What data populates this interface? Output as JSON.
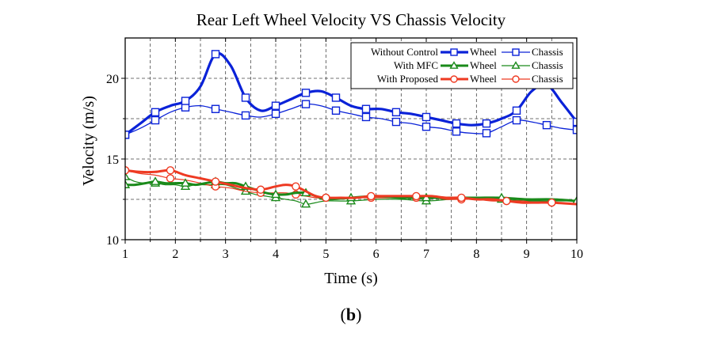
{
  "chart_data": {
    "type": "line",
    "title": "Rear Left Wheel Velocity VS Chassis Velocity",
    "xlabel": "Time (s)",
    "ylabel": "Velocity (m/s)",
    "xlim": [
      1,
      10
    ],
    "ylim": [
      10,
      22.5
    ],
    "xticks": [
      1,
      2,
      3,
      4,
      5,
      6,
      7,
      8,
      9,
      10
    ],
    "yticks": [
      10,
      15,
      20
    ],
    "grid": "dashed",
    "legend_position": "top-right",
    "legend_groups": [
      "Without Control",
      "With MFC",
      "With Proposed"
    ],
    "legend_wheel_label": "Wheel",
    "legend_chassis_label": "Chassis",
    "series": [
      {
        "name": "Wheel",
        "group": "Without Control",
        "color": "#0a22d8",
        "marker": "square",
        "width": 3.2,
        "x": [
          1.0,
          1.3,
          1.6,
          1.9,
          2.2,
          2.5,
          2.8,
          3.1,
          3.4,
          3.7,
          4.0,
          4.3,
          4.6,
          4.9,
          5.2,
          5.5,
          5.8,
          6.1,
          6.4,
          6.7,
          7.0,
          7.3,
          7.6,
          7.9,
          8.2,
          8.5,
          8.8,
          9.1,
          9.4,
          9.7,
          10.0
        ],
        "y": [
          16.5,
          17.2,
          17.9,
          18.3,
          18.6,
          19.5,
          21.5,
          20.8,
          18.8,
          18.0,
          18.3,
          18.7,
          19.1,
          19.2,
          18.8,
          18.3,
          18.1,
          18.1,
          17.9,
          17.8,
          17.6,
          17.4,
          17.2,
          17.1,
          17.2,
          17.5,
          18.0,
          19.2,
          19.6,
          18.5,
          17.3
        ]
      },
      {
        "name": "Chassis",
        "group": "Without Control",
        "color": "#0a22d8",
        "marker": "square-open",
        "width": 1.3,
        "x": [
          1.0,
          1.3,
          1.6,
          1.9,
          2.2,
          2.5,
          2.8,
          3.1,
          3.4,
          3.7,
          4.0,
          4.3,
          4.6,
          4.9,
          5.2,
          5.5,
          5.8,
          6.1,
          6.4,
          6.7,
          7.0,
          7.3,
          7.6,
          7.9,
          8.2,
          8.5,
          8.8,
          9.1,
          9.4,
          9.7,
          10.0
        ],
        "y": [
          16.5,
          16.9,
          17.4,
          17.9,
          18.2,
          18.3,
          18.1,
          17.9,
          17.7,
          17.6,
          17.8,
          18.1,
          18.4,
          18.3,
          18.0,
          17.8,
          17.6,
          17.5,
          17.3,
          17.2,
          17.0,
          16.9,
          16.7,
          16.6,
          16.6,
          17.0,
          17.4,
          17.3,
          17.1,
          16.9,
          16.8
        ]
      },
      {
        "name": "Wheel",
        "group": "With MFC",
        "color": "#1a8a1a",
        "marker": "triangle",
        "width": 3.0,
        "x": [
          1.0,
          1.2,
          1.4,
          1.6,
          1.8,
          2.0,
          2.2,
          2.4,
          2.6,
          2.8,
          3.0,
          3.2,
          3.4,
          3.6,
          3.8,
          4.0,
          4.2,
          4.4,
          4.6,
          4.8,
          5.0,
          5.5,
          6.0,
          6.5,
          7.0,
          7.5,
          8.0,
          8.5,
          9.0,
          9.5,
          10.0
        ],
        "y": [
          13.4,
          13.4,
          13.5,
          13.6,
          13.5,
          13.5,
          13.5,
          13.4,
          13.5,
          13.6,
          13.5,
          13.5,
          13.3,
          13.1,
          12.9,
          12.8,
          12.8,
          12.9,
          12.9,
          12.7,
          12.5,
          12.6,
          12.7,
          12.6,
          12.6,
          12.6,
          12.6,
          12.6,
          12.5,
          12.5,
          12.4
        ]
      },
      {
        "name": "Chassis",
        "group": "With MFC",
        "color": "#1a8a1a",
        "marker": "triangle-open",
        "width": 1.2,
        "x": [
          1.0,
          1.2,
          1.4,
          1.6,
          1.8,
          2.0,
          2.2,
          2.4,
          2.6,
          2.8,
          3.0,
          3.2,
          3.4,
          3.6,
          3.8,
          4.0,
          4.2,
          4.4,
          4.6,
          4.8,
          5.0,
          5.5,
          6.0,
          6.5,
          7.0,
          7.5,
          8.0,
          8.5,
          9.0,
          9.5,
          10.0
        ],
        "y": [
          13.9,
          13.6,
          13.5,
          13.5,
          13.4,
          13.4,
          13.3,
          13.4,
          13.4,
          13.4,
          13.4,
          13.2,
          13.0,
          12.8,
          12.7,
          12.6,
          12.5,
          12.4,
          12.2,
          12.3,
          12.4,
          12.4,
          12.5,
          12.5,
          12.4,
          12.5,
          12.5,
          12.5,
          12.4,
          12.4,
          12.4
        ]
      },
      {
        "name": "Wheel",
        "group": "With Proposed",
        "color": "#ee3a22",
        "marker": "circle",
        "width": 3.0,
        "x": [
          1.0,
          1.3,
          1.6,
          1.9,
          2.2,
          2.5,
          2.8,
          3.1,
          3.4,
          3.7,
          4.0,
          4.2,
          4.4,
          4.6,
          4.8,
          5.0,
          5.3,
          5.6,
          5.9,
          6.2,
          6.5,
          6.8,
          7.1,
          7.4,
          7.7,
          8.0,
          8.3,
          8.6,
          8.9,
          9.2,
          9.5,
          10.0
        ],
        "y": [
          14.3,
          14.2,
          14.2,
          14.3,
          14.0,
          13.8,
          13.6,
          13.4,
          13.2,
          13.1,
          13.3,
          13.4,
          13.3,
          13.0,
          12.7,
          12.6,
          12.6,
          12.6,
          12.7,
          12.7,
          12.7,
          12.7,
          12.7,
          12.6,
          12.6,
          12.5,
          12.5,
          12.4,
          12.3,
          12.3,
          12.3,
          12.2
        ]
      },
      {
        "name": "Chassis",
        "group": "With Proposed",
        "color": "#ee3a22",
        "marker": "circle-open",
        "width": 1.2,
        "x": [
          1.0,
          1.3,
          1.6,
          1.9,
          2.2,
          2.5,
          2.8,
          3.1,
          3.4,
          3.7,
          4.0,
          4.2,
          4.4,
          4.6,
          4.8,
          5.0,
          5.3,
          5.6,
          5.9,
          6.2,
          6.5,
          6.8,
          7.1,
          7.4,
          7.7,
          8.0,
          8.3,
          8.6,
          8.9,
          9.2,
          9.5,
          10.0
        ],
        "y": [
          14.3,
          14.1,
          14.0,
          13.8,
          13.7,
          13.5,
          13.3,
          13.2,
          13.0,
          12.9,
          12.9,
          12.9,
          12.8,
          12.7,
          12.6,
          12.6,
          12.6,
          12.6,
          12.6,
          12.6,
          12.6,
          12.6,
          12.6,
          12.5,
          12.5,
          12.5,
          12.4,
          12.4,
          12.4,
          12.3,
          12.3,
          12.2
        ]
      }
    ]
  },
  "caption": "(b)",
  "caption_letter": "b"
}
